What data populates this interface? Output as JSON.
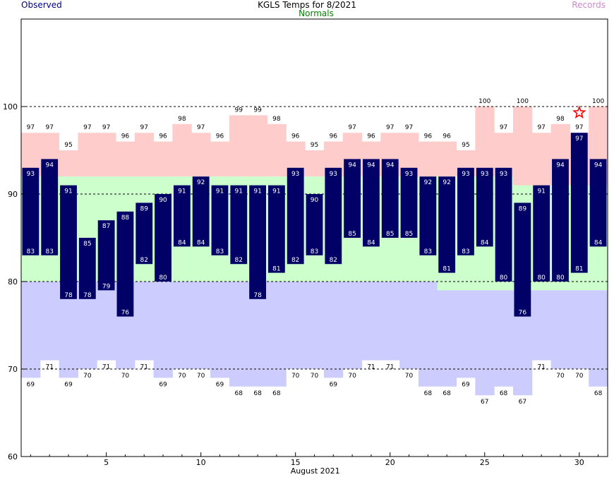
{
  "title": "KGLS Temps for 8/2021",
  "legend": {
    "observed": "Observed",
    "normals": "Normals",
    "records": "Records"
  },
  "colors": {
    "observed_bar": "#000066",
    "normal_band": "#ccffcc",
    "record_high_band": "#ffcccc",
    "record_low_band": "#ccccff",
    "observed_legend": "#000080",
    "normals_legend": "#008000",
    "records_legend": "#cc88cc",
    "record_star": "#ff0000"
  },
  "chart_data": {
    "type": "bar",
    "title": "KGLS Temps for 8/2021",
    "xlabel": "August 2021",
    "ylabel": "",
    "ylim": [
      60,
      110
    ],
    "yticks": [
      60,
      70,
      80,
      90,
      100
    ],
    "xticks": [
      5,
      10,
      15,
      20,
      25,
      30
    ],
    "x": [
      1,
      2,
      3,
      4,
      5,
      6,
      7,
      8,
      9,
      10,
      11,
      12,
      13,
      14,
      15,
      16,
      17,
      18,
      19,
      20,
      21,
      22,
      23,
      24,
      25,
      26,
      27,
      28,
      29,
      30,
      31
    ],
    "grid": "dashed horizontal at 70, 80, 90, 100",
    "observed_high": [
      93,
      94,
      91,
      85,
      87,
      88,
      89,
      90,
      91,
      92,
      91,
      91,
      91,
      91,
      93,
      90,
      93,
      94,
      94,
      94,
      93,
      92,
      92,
      93,
      93,
      93,
      89,
      91,
      94,
      97,
      94
    ],
    "observed_low": [
      83,
      83,
      78,
      78,
      79,
      76,
      82,
      80,
      84,
      84,
      83,
      82,
      78,
      81,
      82,
      83,
      82,
      85,
      84,
      85,
      85,
      83,
      81,
      83,
      84,
      80,
      76,
      80,
      80,
      81,
      84
    ],
    "normal_high": [
      92,
      92,
      92,
      92,
      92,
      92,
      92,
      92,
      92,
      92,
      92,
      92,
      92,
      92,
      92,
      92,
      92,
      92,
      92,
      92,
      92,
      92,
      92,
      92,
      92,
      92,
      91,
      91,
      91,
      91,
      91
    ],
    "normal_low": [
      80,
      80,
      80,
      80,
      80,
      80,
      80,
      80,
      80,
      80,
      80,
      80,
      80,
      80,
      80,
      80,
      80,
      80,
      80,
      80,
      80,
      80,
      79,
      79,
      79,
      79,
      79,
      79,
      79,
      79,
      79
    ],
    "record_high": [
      97,
      97,
      95,
      97,
      97,
      96,
      97,
      96,
      98,
      97,
      96,
      99,
      99,
      98,
      96,
      95,
      96,
      97,
      96,
      97,
      97,
      96,
      96,
      95,
      100,
      97,
      100,
      97,
      98,
      97,
      100
    ],
    "record_low": [
      69,
      71,
      69,
      70,
      71,
      70,
      71,
      69,
      70,
      70,
      69,
      68,
      68,
      68,
      70,
      70,
      69,
      70,
      71,
      71,
      70,
      68,
      68,
      69,
      67,
      68,
      67,
      71,
      70,
      70,
      68
    ],
    "record_set_days": [
      30
    ]
  }
}
